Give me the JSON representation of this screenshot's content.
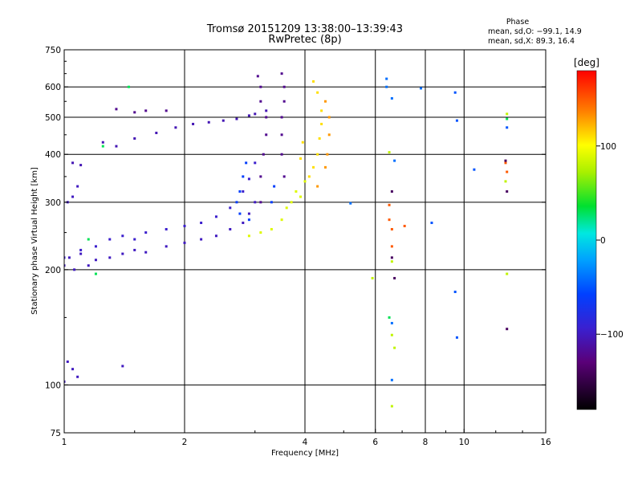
{
  "chart_data": {
    "type": "scatter",
    "title": "Tromsø 20151209 13:38:00–13:39:43",
    "subtitle": "RwPretec (8p)",
    "xlabel": "Frequency [MHz]",
    "ylabel": "Stationary phase Virtual Height [km]",
    "x_scale": "log",
    "y_scale": "log",
    "xlim": [
      1,
      16
    ],
    "ylim": [
      75,
      750
    ],
    "x_ticks": [
      1,
      2,
      4,
      6,
      8,
      10,
      16
    ],
    "x_tick_labels": [
      "1",
      "2",
      "4",
      "6",
      "8",
      "10",
      "16"
    ],
    "y_ticks": [
      75,
      100,
      200,
      300,
      400,
      500,
      600,
      750
    ],
    "y_tick_labels": [
      "75",
      "100",
      "200",
      "300",
      "400",
      "500",
      "600",
      "750"
    ],
    "grid_x": [
      2,
      4,
      6,
      8,
      10
    ],
    "grid_y": [
      100,
      200,
      300,
      400,
      500,
      600
    ],
    "grid": true,
    "phase_box": {
      "title": "Phase",
      "line_o": "mean, sd,O: −99.1, 14.9",
      "line_x": "mean, sd,X:  89.3, 16.4"
    },
    "colorbar": {
      "label": "[deg]",
      "min": -180,
      "max": 180,
      "tick_values": [
        100,
        0,
        -100
      ],
      "tick_labels": [
        "100",
        "0",
        "−100"
      ],
      "colormap": "rainbow (black–purple–blue–cyan–green–yellow–red)"
    },
    "series": [
      {
        "phase": -100,
        "points": [
          [
            1.0,
            205
          ],
          [
            1.03,
            215
          ],
          [
            1.06,
            200
          ],
          [
            1.1,
            220
          ],
          [
            1.15,
            205
          ],
          [
            1.2,
            212
          ],
          [
            1.3,
            215
          ],
          [
            1.4,
            220
          ],
          [
            1.5,
            225
          ],
          [
            1.6,
            222
          ],
          [
            1.8,
            230
          ],
          [
            2.0,
            235
          ],
          [
            2.2,
            240
          ],
          [
            2.4,
            245
          ],
          [
            2.6,
            255
          ],
          [
            2.8,
            265
          ],
          [
            2.9,
            280
          ],
          [
            3.0,
            300
          ]
        ]
      },
      {
        "phase": -95,
        "points": [
          [
            1.0,
            215
          ],
          [
            1.1,
            225
          ],
          [
            1.2,
            230
          ],
          [
            1.3,
            240
          ],
          [
            1.4,
            245
          ],
          [
            1.5,
            240
          ],
          [
            1.6,
            250
          ],
          [
            1.8,
            255
          ],
          [
            2.0,
            260
          ],
          [
            2.2,
            265
          ],
          [
            2.4,
            275
          ],
          [
            2.6,
            290
          ],
          [
            2.8,
            320
          ],
          [
            2.9,
            345
          ],
          [
            3.0,
            380
          ]
        ]
      },
      {
        "phase": -105,
        "points": [
          [
            1.05,
            380
          ],
          [
            1.1,
            375
          ],
          [
            1.25,
            430
          ],
          [
            1.35,
            420
          ],
          [
            1.5,
            440
          ],
          [
            1.7,
            455
          ],
          [
            1.9,
            470
          ],
          [
            2.1,
            480
          ],
          [
            2.3,
            485
          ],
          [
            2.5,
            490
          ],
          [
            2.7,
            495
          ],
          [
            2.9,
            505
          ],
          [
            3.0,
            510
          ],
          [
            3.2,
            520
          ]
        ]
      },
      {
        "phase": -120,
        "points": [
          [
            1.35,
            525
          ],
          [
            1.5,
            515
          ],
          [
            1.6,
            520
          ],
          [
            1.8,
            520
          ],
          [
            3.05,
            640
          ],
          [
            3.1,
            600
          ],
          [
            3.1,
            550
          ],
          [
            3.2,
            500
          ],
          [
            3.2,
            450
          ],
          [
            3.15,
            400
          ],
          [
            3.1,
            350
          ],
          [
            3.1,
            300
          ],
          [
            3.5,
            650
          ],
          [
            3.55,
            600
          ],
          [
            3.55,
            550
          ],
          [
            3.5,
            500
          ],
          [
            3.5,
            450
          ],
          [
            3.5,
            400
          ],
          [
            3.55,
            350
          ]
        ]
      },
      {
        "phase": -60,
        "points": [
          [
            2.7,
            300
          ],
          [
            2.75,
            320
          ],
          [
            2.8,
            350
          ],
          [
            2.85,
            380
          ],
          [
            2.9,
            270
          ],
          [
            2.75,
            280
          ],
          [
            3.3,
            300
          ],
          [
            3.35,
            330
          ]
        ]
      },
      {
        "phase": 90,
        "points": [
          [
            2.9,
            245
          ],
          [
            3.1,
            250
          ],
          [
            3.3,
            255
          ],
          [
            3.5,
            270
          ],
          [
            3.6,
            290
          ],
          [
            3.8,
            320
          ],
          [
            4.0,
            340
          ],
          [
            3.7,
            300
          ],
          [
            3.9,
            310
          ]
        ]
      },
      {
        "phase": 110,
        "points": [
          [
            4.2,
            620
          ],
          [
            4.3,
            580
          ],
          [
            4.4,
            520
          ],
          [
            4.4,
            480
          ],
          [
            4.35,
            440
          ],
          [
            4.3,
            400
          ],
          [
            4.2,
            370
          ],
          [
            4.1,
            350
          ],
          [
            3.9,
            390
          ],
          [
            3.95,
            430
          ]
        ]
      },
      {
        "phase": 130,
        "points": [
          [
            4.5,
            550
          ],
          [
            4.6,
            500
          ],
          [
            4.6,
            450
          ],
          [
            4.55,
            400
          ],
          [
            4.5,
            370
          ],
          [
            4.3,
            330
          ]
        ]
      },
      {
        "phase": -100,
        "points": [
          [
            1.02,
            115
          ],
          [
            1.05,
            110
          ],
          [
            1.08,
            105
          ],
          [
            1.0,
            102
          ],
          [
            1.4,
            112
          ],
          [
            1.02,
            300
          ],
          [
            1.05,
            310
          ],
          [
            1.08,
            330
          ]
        ]
      },
      {
        "phase": -40,
        "points": [
          [
            6.4,
            630
          ],
          [
            6.6,
            560
          ],
          [
            6.7,
            385
          ],
          [
            5.2,
            298
          ],
          [
            6.4,
            600
          ],
          [
            6.6,
            145
          ],
          [
            6.6,
            103
          ],
          [
            7.8,
            595
          ]
        ]
      },
      {
        "phase": -50,
        "points": [
          [
            8.3,
            265
          ],
          [
            9.5,
            580
          ],
          [
            9.6,
            490
          ],
          [
            9.5,
            175
          ],
          [
            9.6,
            133
          ],
          [
            10.6,
            365
          ],
          [
            12.8,
            470
          ]
        ]
      },
      {
        "phase": 80,
        "points": [
          [
            6.5,
            405
          ],
          [
            6.6,
            135
          ],
          [
            6.7,
            125
          ],
          [
            6.6,
            88
          ],
          [
            6.6,
            210
          ],
          [
            5.9,
            190
          ],
          [
            12.8,
            510
          ],
          [
            12.7,
            340
          ],
          [
            12.8,
            195
          ]
        ]
      },
      {
        "phase": 150,
        "points": [
          [
            6.5,
            295
          ],
          [
            6.5,
            270
          ],
          [
            6.6,
            255
          ],
          [
            6.6,
            230
          ],
          [
            12.8,
            360
          ],
          [
            12.7,
            380
          ],
          [
            7.1,
            260
          ]
        ]
      },
      {
        "phase": -140,
        "points": [
          [
            6.6,
            320
          ],
          [
            6.7,
            190
          ],
          [
            12.8,
            320
          ],
          [
            12.8,
            140
          ],
          [
            12.7,
            385
          ],
          [
            6.6,
            215
          ]
        ]
      },
      {
        "phase": 30,
        "points": [
          [
            1.25,
            420
          ],
          [
            1.15,
            240
          ],
          [
            1.45,
            600
          ],
          [
            1.2,
            195
          ],
          [
            6.5,
            150
          ],
          [
            12.8,
            495
          ]
        ]
      }
    ]
  }
}
